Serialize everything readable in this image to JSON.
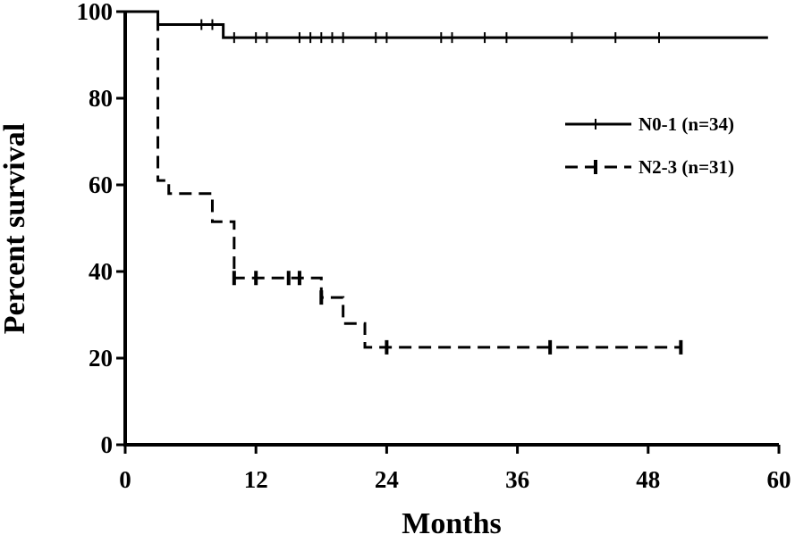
{
  "chart_data": {
    "type": "line",
    "title": "",
    "xlabel": "Months",
    "ylabel": "Percent survival",
    "xlim": [
      0,
      60
    ],
    "ylim": [
      0,
      100
    ],
    "xticks": [
      0,
      12,
      24,
      36,
      48,
      60
    ],
    "yticks": [
      0,
      20,
      40,
      60,
      80,
      100
    ],
    "grid": false,
    "legend_position": "right",
    "series": [
      {
        "name": "N0-1 (n=34)",
        "color": "#000000",
        "style": "solid",
        "steps": [
          [
            0,
            100
          ],
          [
            3,
            97
          ],
          [
            9,
            94
          ],
          [
            59,
            94
          ]
        ],
        "censored": [
          [
            7,
            97
          ],
          [
            8,
            97
          ],
          [
            10,
            94
          ],
          [
            12,
            94
          ],
          [
            13,
            94
          ],
          [
            16,
            94
          ],
          [
            17,
            94
          ],
          [
            18,
            94
          ],
          [
            19,
            94
          ],
          [
            20,
            94
          ],
          [
            23,
            94
          ],
          [
            24,
            94
          ],
          [
            29,
            94
          ],
          [
            30,
            94
          ],
          [
            33,
            94
          ],
          [
            35,
            94
          ],
          [
            41,
            94
          ],
          [
            45,
            94
          ],
          [
            49,
            94
          ]
        ]
      },
      {
        "name": "N2-3 (n=31)",
        "color": "#000000",
        "style": "dashed",
        "steps": [
          [
            0,
            100
          ],
          [
            3,
            61
          ],
          [
            4,
            58
          ],
          [
            8,
            51.5
          ],
          [
            10,
            38.5
          ],
          [
            17,
            38.5
          ],
          [
            18,
            34
          ],
          [
            20,
            28
          ],
          [
            22,
            22.5
          ],
          [
            51,
            22.5
          ]
        ],
        "censored": [
          [
            10,
            38.5
          ],
          [
            12,
            38.5
          ],
          [
            15,
            38.5
          ],
          [
            16,
            38.5
          ],
          [
            18,
            34
          ],
          [
            24,
            22.5
          ],
          [
            39,
            22.5
          ],
          [
            51,
            22.5
          ]
        ]
      }
    ]
  }
}
